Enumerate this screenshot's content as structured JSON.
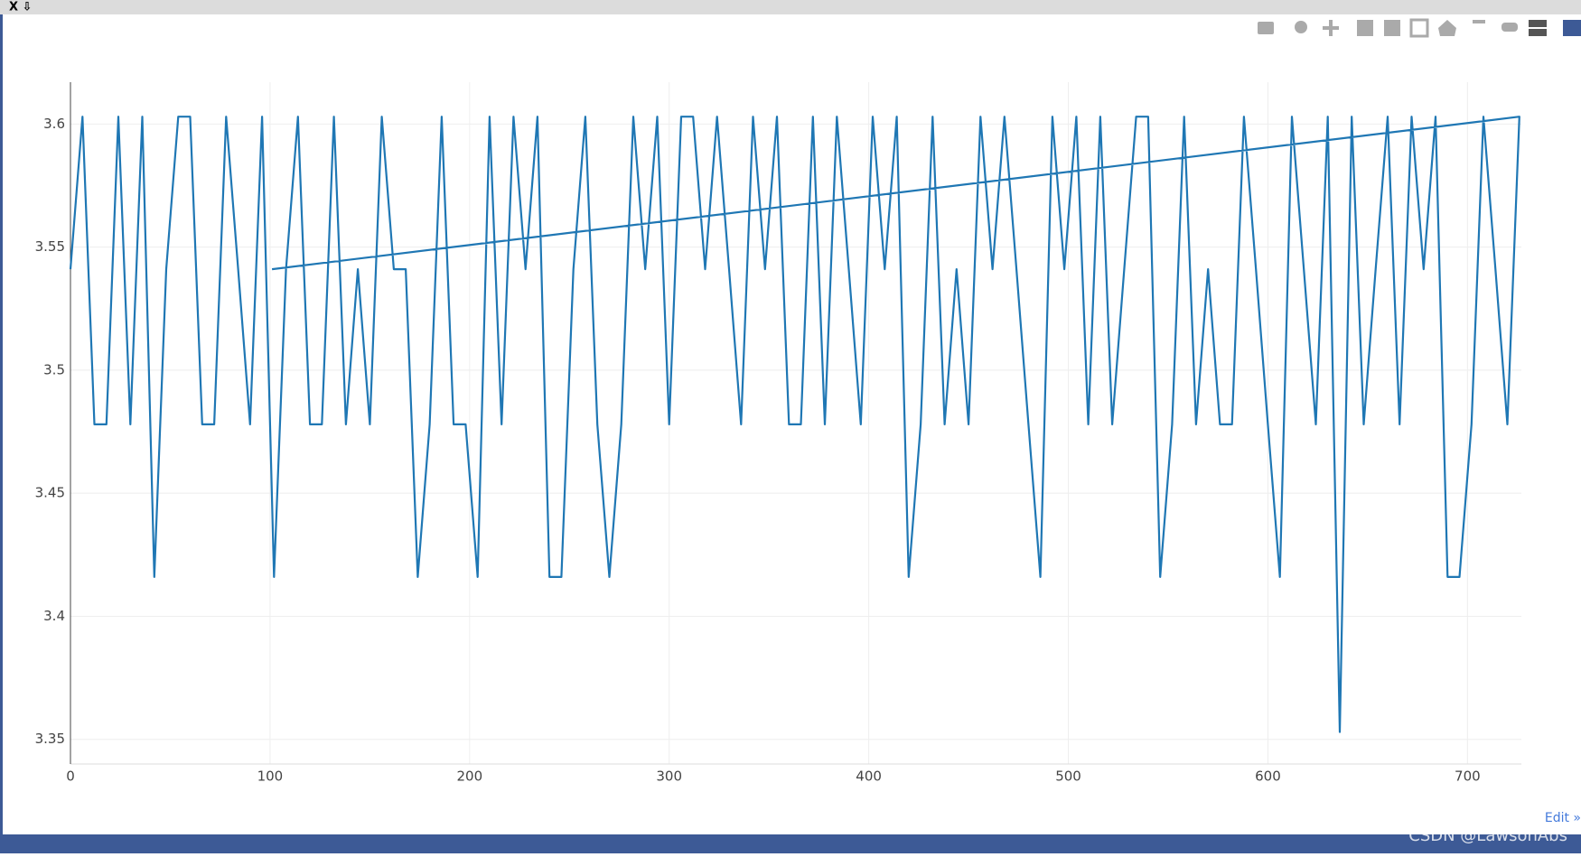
{
  "window_controls": "X ⇩",
  "edit_link": "Edit »",
  "watermark": "CSDN @LawsonAbs",
  "chart_data": {
    "type": "line",
    "series": [
      {
        "color": "#1f77b4",
        "x": [
          0,
          6,
          12,
          18,
          24,
          30,
          36,
          42,
          48,
          54,
          60,
          66,
          72,
          78,
          84,
          90,
          96,
          102,
          108,
          114,
          120,
          126,
          132,
          138,
          144,
          150,
          156,
          162,
          168,
          174,
          180,
          186,
          192,
          198,
          204,
          210,
          216,
          222,
          228,
          234,
          240,
          246,
          252,
          258,
          264,
          270,
          276,
          282,
          288,
          294,
          300,
          306,
          312,
          318,
          324,
          330,
          336,
          342,
          348,
          354,
          360,
          366,
          372,
          378,
          384,
          390,
          396,
          402,
          408,
          414,
          420,
          426,
          432,
          438,
          444,
          450,
          456,
          462,
          468,
          474,
          480,
          486,
          492,
          498,
          504,
          510,
          516,
          522,
          528,
          534,
          540,
          546,
          552,
          558,
          564,
          570,
          576,
          582,
          588,
          594,
          600,
          606,
          612,
          618,
          624,
          630,
          636,
          642,
          648,
          654,
          660,
          666,
          672,
          678,
          684,
          690,
          696,
          702,
          708,
          714,
          720,
          726,
          101
        ],
        "values": [
          3.541,
          3.603,
          3.478,
          3.478,
          3.603,
          3.478,
          3.603,
          3.416,
          3.541,
          3.603,
          3.603,
          3.478,
          3.478,
          3.603,
          3.541,
          3.478,
          3.603,
          3.416,
          3.541,
          3.603,
          3.478,
          3.478,
          3.603,
          3.478,
          3.541,
          3.478,
          3.603,
          3.541,
          3.541,
          3.416,
          3.478,
          3.603,
          3.478,
          3.478,
          3.416,
          3.603,
          3.478,
          3.603,
          3.541,
          3.603,
          3.416,
          3.416,
          3.541,
          3.603,
          3.478,
          3.416,
          3.478,
          3.603,
          3.541,
          3.603,
          3.478,
          3.603,
          3.603,
          3.541,
          3.603,
          3.541,
          3.478,
          3.603,
          3.541,
          3.603,
          3.478,
          3.478,
          3.603,
          3.478,
          3.603,
          3.541,
          3.478,
          3.603,
          3.541,
          3.603,
          3.416,
          3.478,
          3.603,
          3.478,
          3.541,
          3.478,
          3.603,
          3.541,
          3.603,
          3.541,
          3.478,
          3.416,
          3.603,
          3.541,
          3.603,
          3.478,
          3.603,
          3.478,
          3.541,
          3.603,
          3.603,
          3.416,
          3.478,
          3.603,
          3.478,
          3.541,
          3.478,
          3.478,
          3.603,
          3.541,
          3.478,
          3.416,
          3.603,
          3.541,
          3.478,
          3.603,
          3.353,
          3.603,
          3.478,
          3.541,
          3.603,
          3.478,
          3.603,
          3.541,
          3.603,
          3.416,
          3.416,
          3.478,
          3.603,
          3.541,
          3.478,
          3.603,
          3.541
        ]
      }
    ],
    "xlim": [
      0,
      727
    ],
    "xticks": [
      0,
      100,
      200,
      300,
      400,
      500,
      600,
      700
    ],
    "ylim": [
      3.34,
      3.617
    ],
    "yticks": [
      3.35,
      3.4,
      3.45,
      3.5,
      3.55,
      3.6
    ],
    "grid": true
  }
}
